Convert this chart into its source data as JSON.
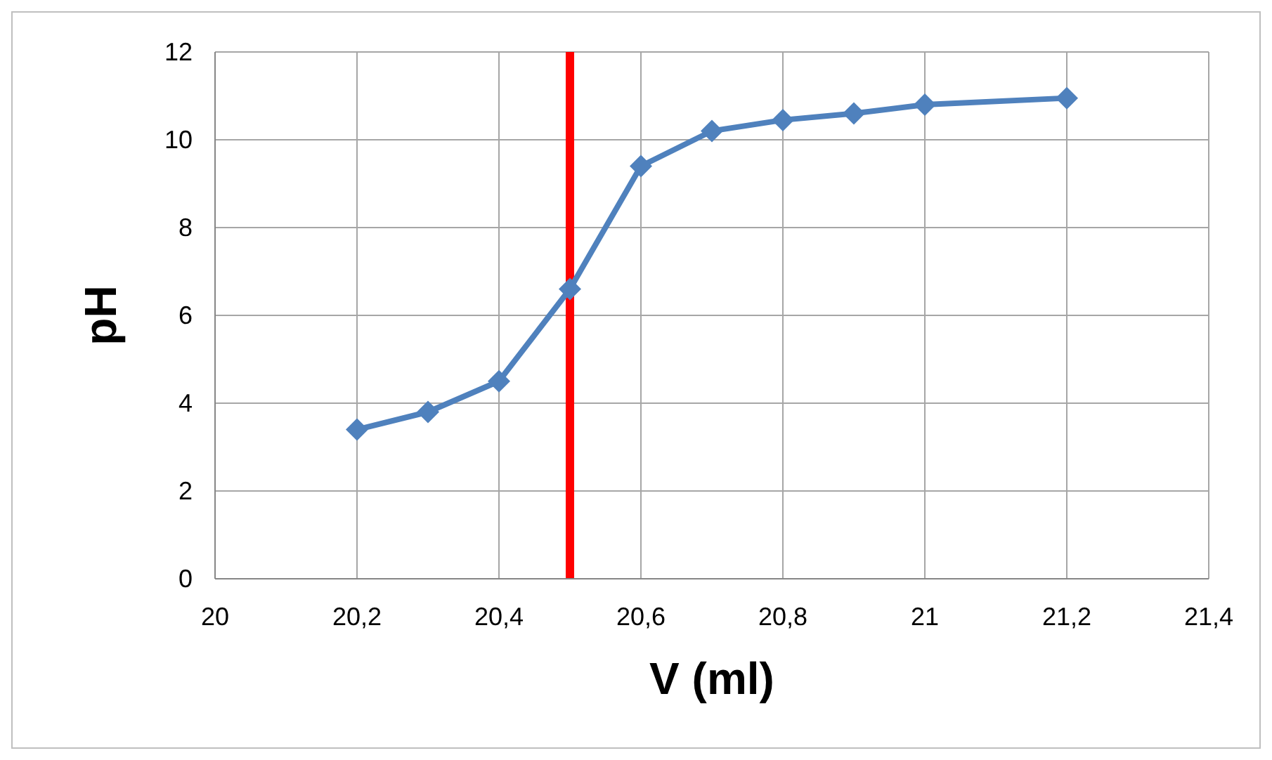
{
  "chart_data": {
    "type": "line",
    "xlabel": "V (ml)",
    "ylabel": "pH",
    "x": [
      20.2,
      20.3,
      20.4,
      20.5,
      20.6,
      20.7,
      20.8,
      20.9,
      21,
      21.2
    ],
    "series": [
      {
        "color": "#4f81bd",
        "values": [
          3.4,
          3.8,
          4.5,
          6.6,
          9.4,
          10.2,
          10.45,
          10.6,
          10.8,
          10.95
        ]
      }
    ],
    "xlim": [
      20,
      21.4
    ],
    "xticks": [
      20,
      {
        "value": 20.2,
        "label": "20,2"
      },
      {
        "value": 20.4,
        "label": "20,4"
      },
      {
        "value": 20.6,
        "label": "20,6"
      },
      {
        "value": 20.8,
        "label": "20,8"
      },
      21,
      {
        "value": 21.2,
        "label": "21,2"
      },
      {
        "value": 21.4,
        "label": "21,4"
      }
    ],
    "ylim": [
      0,
      12
    ],
    "yticks": [
      0,
      2,
      4,
      6,
      8,
      10,
      12
    ],
    "ref_lines": [
      {
        "axis": "x",
        "value": 20.5,
        "color": "#ff0000"
      }
    ],
    "grid": true,
    "marker": "diamond",
    "line_style": "solid",
    "legend": false
  }
}
